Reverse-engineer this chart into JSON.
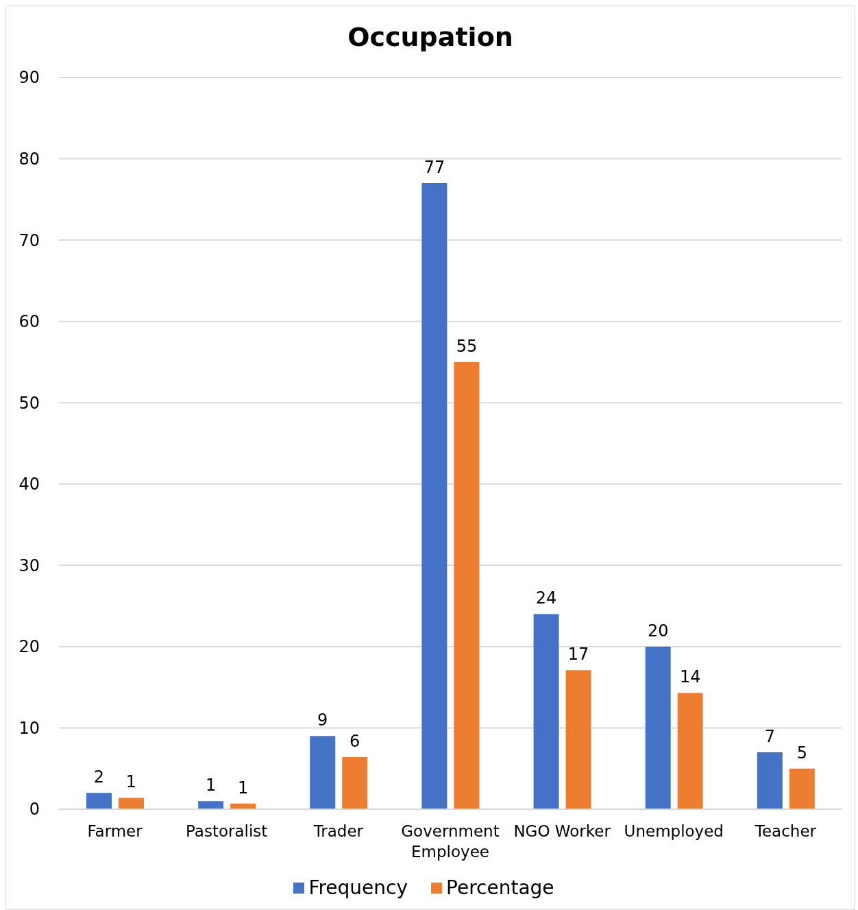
{
  "chart_data": {
    "type": "bar",
    "title": "Occupation",
    "categories": [
      "Farmer",
      "Pastoralist",
      "Trader",
      "Government Employee",
      "NGO Worker",
      "Unemployed",
      "Teacher"
    ],
    "series": [
      {
        "name": "Frequency",
        "color": "#4472c4",
        "values": [
          2,
          1,
          9,
          77,
          24,
          20,
          7
        ],
        "value_labels": [
          "2",
          "1",
          "9",
          "77",
          "24",
          "20",
          "7"
        ]
      },
      {
        "name": "Percentage",
        "color": "#ed7d31",
        "values": [
          1.4,
          0.7,
          6.4,
          55,
          17.1,
          14.3,
          5
        ],
        "value_labels": [
          "1",
          "1",
          "6",
          "55",
          "17",
          "14",
          "5"
        ]
      }
    ],
    "ylim": [
      0,
      90
    ],
    "yticks": [
      0,
      10,
      20,
      30,
      40,
      50,
      60,
      70,
      80,
      90
    ],
    "grid": "y",
    "legend": "bottom"
  }
}
